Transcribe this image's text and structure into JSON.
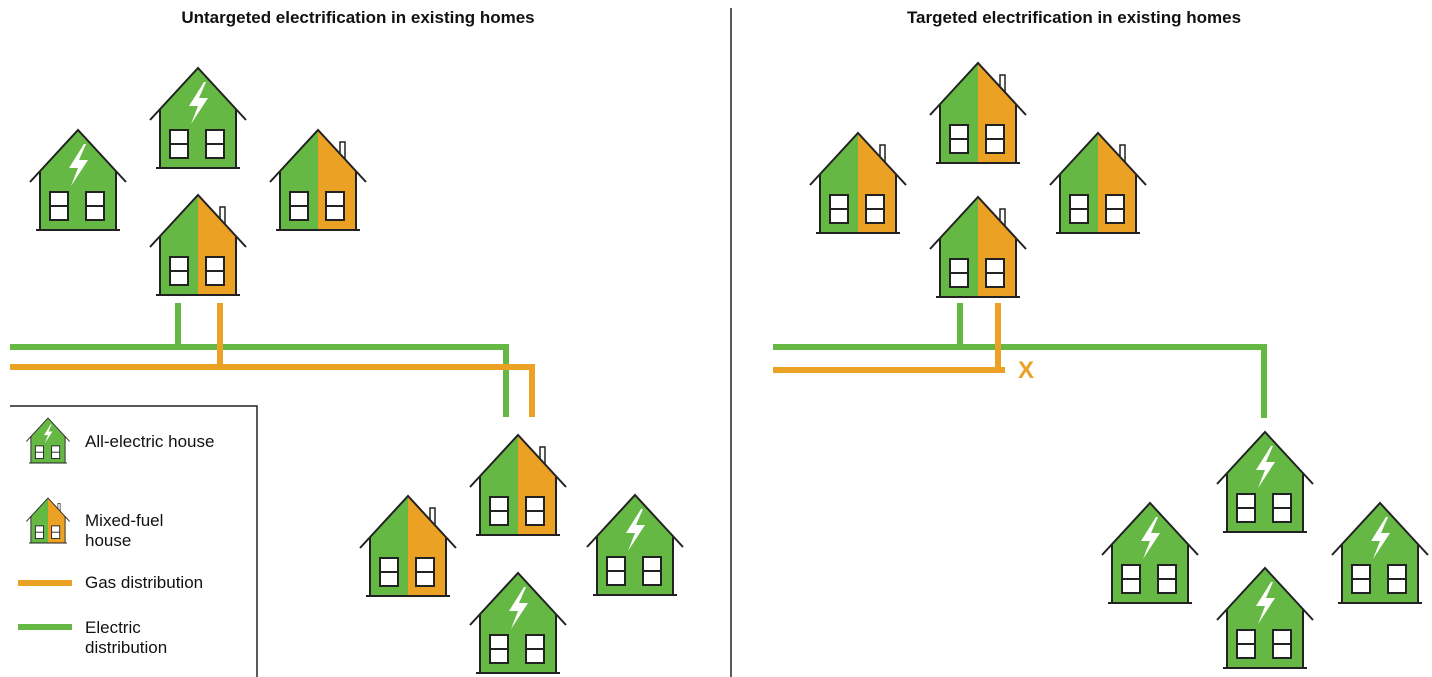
{
  "panels": [
    {
      "title": "Untargeted electrification in existing homes"
    },
    {
      "title": "Targeted electrification in existing homes"
    }
  ],
  "legend": [
    {
      "label": "All-electric house"
    },
    {
      "label": "Mixed-fuel house"
    },
    {
      "label": "Gas distribution"
    },
    {
      "label": "Electric distribution"
    }
  ],
  "gas_cutoff_mark": "X"
}
